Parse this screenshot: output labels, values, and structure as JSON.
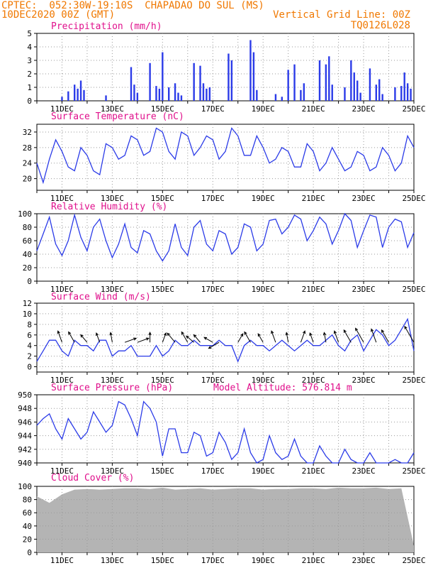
{
  "header": {
    "line1": "CPTEC:  052:30W-19:10S  CHAPADAO DO SUL (MS)",
    "line2_left": "10DEC2020 00Z (GMT)",
    "line2_right": "Vertical Grid Line: 00Z",
    "line3_right": "TQ0126L028"
  },
  "colors": {
    "header": "#f07800",
    "panel_title": "#e0108c",
    "series": "#2b3be8",
    "cloud": "#b4b4b4"
  },
  "x_axis": {
    "start": "10DEC2020 00Z",
    "end": "25DEC2020 00Z",
    "ticks": [
      "11DEC",
      "13DEC",
      "15DEC",
      "17DEC",
      "19DEC",
      "21DEC",
      "23DEC",
      "25DEC"
    ]
  },
  "chart_data": [
    {
      "type": "bar",
      "title": "Precipitation (mm/h)",
      "ylim": [
        0,
        5
      ],
      "yticks": [
        "0",
        "1",
        "2",
        "3",
        "4",
        "5"
      ],
      "grid": true,
      "x": [
        "11DEC 00Z",
        "11DEC 06Z",
        "11DEC 12Z",
        "11DEC 15Z",
        "11DEC 18Z",
        "11DEC 21Z",
        "12DEC 18Z",
        "13DEC 18Z",
        "13DEC 21Z",
        "14DEC 00Z",
        "14DEC 12Z",
        "14DEC 18Z",
        "14DEC 21Z",
        "15DEC 00Z",
        "15DEC 06Z",
        "15DEC 12Z",
        "15DEC 15Z",
        "15DEC 18Z",
        "16DEC 06Z",
        "16DEC 12Z",
        "16DEC 15Z",
        "16DEC 18Z",
        "16DEC 21Z",
        "17DEC 15Z",
        "17DEC 18Z",
        "18DEC 12Z",
        "18DEC 15Z",
        "18DEC 18Z",
        "19DEC 12Z",
        "19DEC 18Z",
        "20DEC 00Z",
        "20DEC 06Z",
        "20DEC 12Z",
        "20DEC 15Z",
        "21DEC 06Z",
        "21DEC 12Z",
        "21DEC 15Z",
        "21DEC 18Z",
        "22DEC 06Z",
        "22DEC 12Z",
        "22DEC 15Z",
        "22DEC 18Z",
        "22DEC 21Z",
        "23DEC 06Z",
        "23DEC 12Z",
        "23DEC 15Z",
        "23DEC 18Z",
        "24DEC 06Z",
        "24DEC 12Z",
        "24DEC 15Z",
        "24DEC 18Z",
        "24DEC 21Z"
      ],
      "values": [
        0.3,
        0.7,
        1.2,
        0.9,
        1.5,
        0.8,
        0.4,
        2.5,
        1.2,
        0.6,
        2.8,
        1.1,
        0.9,
        3.6,
        1.0,
        1.3,
        0.6,
        0.4,
        2.8,
        2.6,
        1.3,
        0.9,
        1.0,
        3.5,
        3.0,
        4.5,
        3.6,
        0.8,
        0.5,
        0.3,
        2.3,
        2.7,
        0.8,
        1.3,
        3.0,
        2.7,
        3.3,
        1.2,
        1.0,
        3.0,
        2.1,
        1.5,
        0.6,
        2.4,
        1.2,
        1.6,
        0.5,
        1.0,
        1.1,
        2.1,
        1.3,
        0.9
      ]
    },
    {
      "type": "line",
      "title": "Surface Temperature (nC)",
      "ylim": [
        17,
        34
      ],
      "yticks": [
        "20",
        "24",
        "28",
        "32"
      ],
      "grid": true,
      "x": [
        "10DEC 00Z",
        "10DEC 06Z",
        "10DEC 12Z",
        "10DEC 18Z",
        "11DEC 00Z",
        "11DEC 06Z",
        "11DEC 12Z",
        "11DEC 18Z",
        "12DEC 00Z",
        "12DEC 06Z",
        "12DEC 12Z",
        "12DEC 18Z",
        "13DEC 00Z",
        "13DEC 06Z",
        "13DEC 12Z",
        "13DEC 18Z",
        "14DEC 00Z",
        "14DEC 06Z",
        "14DEC 12Z",
        "14DEC 18Z",
        "15DEC 00Z",
        "15DEC 06Z",
        "15DEC 12Z",
        "15DEC 18Z",
        "16DEC 00Z",
        "16DEC 06Z",
        "16DEC 12Z",
        "16DEC 18Z",
        "17DEC 00Z",
        "17DEC 06Z",
        "17DEC 12Z",
        "17DEC 18Z",
        "18DEC 00Z",
        "18DEC 06Z",
        "18DEC 12Z",
        "18DEC 18Z",
        "19DEC 00Z",
        "19DEC 06Z",
        "19DEC 12Z",
        "19DEC 18Z",
        "20DEC 00Z",
        "20DEC 06Z",
        "20DEC 12Z",
        "20DEC 18Z",
        "21DEC 00Z",
        "21DEC 06Z",
        "21DEC 12Z",
        "21DEC 18Z",
        "22DEC 00Z",
        "22DEC 06Z",
        "22DEC 12Z",
        "22DEC 18Z",
        "23DEC 00Z",
        "23DEC 06Z",
        "23DEC 12Z",
        "23DEC 18Z",
        "24DEC 00Z",
        "24DEC 06Z",
        "24DEC 12Z",
        "24DEC 18Z",
        "25DEC 00Z"
      ],
      "values": [
        24,
        19,
        25,
        30,
        27,
        23,
        22,
        28,
        26,
        22,
        21,
        29,
        28,
        25,
        26,
        31,
        30,
        26,
        27,
        33,
        32,
        27,
        25,
        32,
        31,
        26,
        28,
        31,
        30,
        25,
        27,
        33,
        31,
        26,
        26,
        31,
        28,
        24,
        25,
        28,
        27,
        23,
        23,
        29,
        27,
        22,
        24,
        28,
        25,
        22,
        23,
        27,
        26,
        22,
        23,
        28,
        26,
        22,
        24,
        31,
        28
      ]
    },
    {
      "type": "line",
      "title": "Relative Humidity (%)",
      "ylim": [
        0,
        100
      ],
      "yticks": [
        "0",
        "20",
        "40",
        "60",
        "80",
        "100"
      ],
      "grid": true,
      "x": [
        "10DEC 00Z",
        "10DEC 06Z",
        "10DEC 12Z",
        "10DEC 18Z",
        "11DEC 00Z",
        "11DEC 06Z",
        "11DEC 12Z",
        "11DEC 18Z",
        "12DEC 00Z",
        "12DEC 06Z",
        "12DEC 12Z",
        "12DEC 18Z",
        "13DEC 00Z",
        "13DEC 06Z",
        "13DEC 12Z",
        "13DEC 18Z",
        "14DEC 00Z",
        "14DEC 06Z",
        "14DEC 12Z",
        "14DEC 18Z",
        "15DEC 00Z",
        "15DEC 06Z",
        "15DEC 12Z",
        "15DEC 18Z",
        "16DEC 00Z",
        "16DEC 06Z",
        "16DEC 12Z",
        "16DEC 18Z",
        "17DEC 00Z",
        "17DEC 06Z",
        "17DEC 12Z",
        "17DEC 18Z",
        "18DEC 00Z",
        "18DEC 06Z",
        "18DEC 12Z",
        "18DEC 18Z",
        "19DEC 00Z",
        "19DEC 06Z",
        "19DEC 12Z",
        "19DEC 18Z",
        "20DEC 00Z",
        "20DEC 06Z",
        "20DEC 12Z",
        "20DEC 18Z",
        "21DEC 00Z",
        "21DEC 06Z",
        "21DEC 12Z",
        "21DEC 18Z",
        "22DEC 00Z",
        "22DEC 06Z",
        "22DEC 12Z",
        "22DEC 18Z",
        "23DEC 00Z",
        "23DEC 06Z",
        "23DEC 12Z",
        "23DEC 18Z",
        "24DEC 00Z",
        "24DEC 06Z",
        "24DEC 12Z",
        "24DEC 18Z",
        "25DEC 00Z"
      ],
      "values": [
        45,
        70,
        95,
        55,
        38,
        60,
        98,
        65,
        45,
        80,
        92,
        60,
        35,
        55,
        85,
        50,
        42,
        75,
        70,
        45,
        30,
        45,
        85,
        50,
        38,
        80,
        90,
        55,
        45,
        75,
        70,
        40,
        50,
        85,
        80,
        45,
        55,
        90,
        92,
        70,
        80,
        98,
        92,
        60,
        75,
        95,
        85,
        55,
        75,
        100,
        90,
        50,
        75,
        98,
        95,
        50,
        80,
        92,
        88,
        50,
        72
      ]
    },
    {
      "type": "line",
      "title": "Surface Wind (m/s)",
      "ylim": [
        -1,
        12
      ],
      "yticks": [
        "0",
        "2",
        "4",
        "6",
        "8",
        "10",
        "12"
      ],
      "grid": true,
      "x": [
        "10DEC 00Z",
        "10DEC 06Z",
        "10DEC 12Z",
        "10DEC 18Z",
        "11DEC 00Z",
        "11DEC 06Z",
        "11DEC 12Z",
        "11DEC 18Z",
        "12DEC 00Z",
        "12DEC 06Z",
        "12DEC 12Z",
        "12DEC 18Z",
        "13DEC 00Z",
        "13DEC 06Z",
        "13DEC 12Z",
        "13DEC 18Z",
        "14DEC 00Z",
        "14DEC 06Z",
        "14DEC 12Z",
        "14DEC 18Z",
        "15DEC 00Z",
        "15DEC 06Z",
        "15DEC 12Z",
        "15DEC 18Z",
        "16DEC 00Z",
        "16DEC 06Z",
        "16DEC 12Z",
        "16DEC 18Z",
        "17DEC 00Z",
        "17DEC 06Z",
        "17DEC 12Z",
        "17DEC 18Z",
        "18DEC 00Z",
        "18DEC 06Z",
        "18DEC 12Z",
        "18DEC 18Z",
        "19DEC 00Z",
        "19DEC 06Z",
        "19DEC 12Z",
        "19DEC 18Z",
        "20DEC 00Z",
        "20DEC 06Z",
        "20DEC 12Z",
        "20DEC 18Z",
        "21DEC 00Z",
        "21DEC 06Z",
        "21DEC 12Z",
        "21DEC 18Z",
        "22DEC 00Z",
        "22DEC 06Z",
        "22DEC 12Z",
        "22DEC 18Z",
        "23DEC 00Z",
        "23DEC 06Z",
        "23DEC 12Z",
        "23DEC 18Z",
        "24DEC 00Z",
        "24DEC 06Z",
        "24DEC 12Z",
        "24DEC 18Z",
        "25DEC 00Z"
      ],
      "values": [
        1,
        3,
        5,
        5,
        3,
        2,
        5,
        4,
        4,
        3,
        5,
        5,
        2,
        3,
        3,
        4,
        2,
        2,
        2,
        4,
        2,
        3,
        5,
        4,
        4,
        5,
        4,
        4,
        4,
        5,
        4,
        4,
        1,
        4,
        5,
        4,
        4,
        3,
        4,
        5,
        4,
        3,
        4,
        5,
        4,
        4,
        5,
        6,
        4,
        3,
        5,
        6,
        3,
        5,
        7,
        6,
        4,
        5,
        7,
        9,
        3
      ]
    }
  ],
  "panels": {
    "wind": {
      "barbs": [
        {
          "x": "11DEC 00Z",
          "dir": 160,
          "speed": 3
        },
        {
          "x": "11DEC 12Z",
          "dir": 150,
          "speed": 3
        },
        {
          "x": "12DEC 00Z",
          "dir": 140,
          "speed": 2
        },
        {
          "x": "12DEC 12Z",
          "dir": 160,
          "speed": 2
        },
        {
          "x": "13DEC 00Z",
          "dir": 170,
          "speed": 2
        },
        {
          "x": "13DEC 12Z",
          "dir": 250,
          "speed": 3
        },
        {
          "x": "14DEC 00Z",
          "dir": 250,
          "speed": 3
        },
        {
          "x": "14DEC 12Z",
          "dir": 180,
          "speed": 2
        },
        {
          "x": "15DEC 00Z",
          "dir": 200,
          "speed": 2
        },
        {
          "x": "15DEC 12Z",
          "dir": 140,
          "speed": 3
        },
        {
          "x": "16DEC 00Z",
          "dir": 150,
          "speed": 3
        },
        {
          "x": "16DEC 06Z",
          "dir": 130,
          "speed": 2
        },
        {
          "x": "16DEC 12Z",
          "dir": 140,
          "speed": 2
        },
        {
          "x": "17DEC 00Z",
          "dir": 120,
          "speed": 2
        },
        {
          "x": "17DEC 06Z",
          "dir": 60,
          "speed": 3
        },
        {
          "x": "18DEC 00Z",
          "dir": 210,
          "speed": 2
        },
        {
          "x": "18DEC 12Z",
          "dir": 150,
          "speed": 3
        },
        {
          "x": "19DEC 00Z",
          "dir": 150,
          "speed": 2
        },
        {
          "x": "19DEC 12Z",
          "dir": 160,
          "speed": 3
        },
        {
          "x": "20DEC 00Z",
          "dir": 170,
          "speed": 2
        },
        {
          "x": "20DEC 12Z",
          "dir": 200,
          "speed": 3
        },
        {
          "x": "21DEC 00Z",
          "dir": 160,
          "speed": 2
        },
        {
          "x": "21DEC 12Z",
          "dir": 170,
          "speed": 2
        },
        {
          "x": "22DEC 00Z",
          "dir": 160,
          "speed": 3
        },
        {
          "x": "22DEC 12Z",
          "dir": 150,
          "speed": 4
        },
        {
          "x": "23DEC 00Z",
          "dir": 150,
          "speed": 5
        },
        {
          "x": "23DEC 12Z",
          "dir": 160,
          "speed": 4
        },
        {
          "x": "24DEC 00Z",
          "dir": 150,
          "speed": 4
        },
        {
          "x": "25DEC 00Z",
          "dir": 150,
          "speed": 6
        }
      ]
    },
    "pressure": {
      "title": "Surface Pressure (hPa)",
      "model_altitude": "Model Altitude: 576.814 m",
      "ylim": [
        940,
        950
      ],
      "yticks": [
        "940",
        "942",
        "944",
        "946",
        "948",
        "950"
      ],
      "x": [
        "10DEC 00Z",
        "10DEC 06Z",
        "10DEC 12Z",
        "10DEC 18Z",
        "11DEC 00Z",
        "11DEC 06Z",
        "11DEC 12Z",
        "11DEC 18Z",
        "12DEC 00Z",
        "12DEC 06Z",
        "12DEC 12Z",
        "12DEC 18Z",
        "13DEC 00Z",
        "13DEC 06Z",
        "13DEC 12Z",
        "13DEC 18Z",
        "14DEC 00Z",
        "14DEC 06Z",
        "14DEC 12Z",
        "14DEC 18Z",
        "15DEC 00Z",
        "15DEC 06Z",
        "15DEC 12Z",
        "15DEC 18Z",
        "16DEC 00Z",
        "16DEC 06Z",
        "16DEC 12Z",
        "16DEC 18Z",
        "17DEC 00Z",
        "17DEC 06Z",
        "17DEC 12Z",
        "17DEC 18Z",
        "18DEC 00Z",
        "18DEC 06Z",
        "18DEC 12Z",
        "18DEC 18Z",
        "19DEC 00Z",
        "19DEC 06Z",
        "19DEC 12Z",
        "19DEC 18Z",
        "20DEC 00Z",
        "20DEC 06Z",
        "20DEC 12Z",
        "20DEC 18Z",
        "21DEC 00Z",
        "21DEC 06Z",
        "21DEC 12Z",
        "21DEC 18Z",
        "22DEC 00Z",
        "22DEC 06Z",
        "22DEC 12Z",
        "22DEC 18Z",
        "23DEC 00Z",
        "23DEC 06Z",
        "23DEC 12Z",
        "23DEC 18Z",
        "24DEC 00Z",
        "24DEC 06Z",
        "24DEC 12Z",
        "24DEC 18Z",
        "25DEC 00Z"
      ],
      "values": [
        945.5,
        946.5,
        947.2,
        945.0,
        943.5,
        946.5,
        945.0,
        943.5,
        944.5,
        947.5,
        946.0,
        944.5,
        945.5,
        949.0,
        948.5,
        946.5,
        944.0,
        949.0,
        948.0,
        946.0,
        941.0,
        945.0,
        945.0,
        941.5,
        941.5,
        944.5,
        944.0,
        941.0,
        941.5,
        944.5,
        943.0,
        940.5,
        941.5,
        945.0,
        941.5,
        940.0,
        940.5,
        944.0,
        941.5,
        940.5,
        941.0,
        943.5,
        941.0,
        940.0,
        940.0,
        942.5,
        941.0,
        940.0,
        940.0,
        942.0,
        940.5,
        939.5,
        939.5,
        941.5,
        940.0,
        939.5,
        939.5,
        940.5,
        939.5,
        939.5,
        941.5
      ]
    },
    "cloud": {
      "title": "Cloud Cover (%)",
      "ylim": [
        0,
        100
      ],
      "yticks": [
        "0",
        "20",
        "40",
        "60",
        "80",
        "100"
      ],
      "x": [
        "10DEC 00Z",
        "10DEC 12Z",
        "11DEC 00Z",
        "11DEC 12Z",
        "12DEC 00Z",
        "12DEC 12Z",
        "13DEC 00Z",
        "13DEC 12Z",
        "14DEC 00Z",
        "14DEC 12Z",
        "15DEC 00Z",
        "15DEC 12Z",
        "16DEC 00Z",
        "16DEC 12Z",
        "17DEC 00Z",
        "17DEC 12Z",
        "18DEC 00Z",
        "18DEC 12Z",
        "19DEC 00Z",
        "19DEC 12Z",
        "20DEC 00Z",
        "20DEC 12Z",
        "21DEC 00Z",
        "21DEC 12Z",
        "22DEC 00Z",
        "22DEC 12Z",
        "23DEC 00Z",
        "23DEC 12Z",
        "24DEC 00Z",
        "24DEC 12Z",
        "25DEC 00Z"
      ],
      "values": [
        85,
        75,
        88,
        95,
        96,
        95,
        96,
        97,
        97,
        96,
        98,
        95,
        96,
        97,
        95,
        96,
        97,
        97,
        95,
        96,
        96,
        97,
        97,
        96,
        98,
        97,
        97,
        98,
        96,
        97,
        10
      ]
    }
  }
}
